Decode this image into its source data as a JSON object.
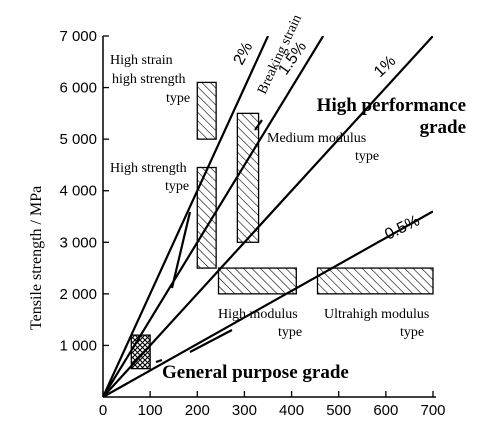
{
  "chart_data": {
    "type": "scatter",
    "title": "",
    "xlabel": "",
    "ylabel": "Tensile strength / MPa",
    "xlim": [
      0,
      700
    ],
    "ylim": [
      0,
      7000
    ],
    "x_ticks": [
      "0",
      "100",
      "200",
      "300",
      "400",
      "500",
      "600",
      "700"
    ],
    "y_ticks": [
      "1 000",
      "2 000",
      "3 000",
      "4 000",
      "5 000",
      "6 000",
      "7 000"
    ],
    "grid": false,
    "strain_lines": [
      {
        "label": "2%",
        "x": [
          0,
          350
        ],
        "y": [
          0,
          7000
        ]
      },
      {
        "label": "1.5%",
        "x": [
          0,
          467
        ],
        "y": [
          0,
          7000
        ]
      },
      {
        "label": "1%",
        "x": [
          0,
          700
        ],
        "y": [
          0,
          7000
        ]
      },
      {
        "label": "0.5%",
        "x": [
          0,
          700
        ],
        "y": [
          0,
          3600
        ]
      }
    ],
    "regions": [
      {
        "name": "High strain high strength type",
        "x": [
          200,
          240
        ],
        "y": [
          5000,
          6100
        ],
        "fill": "hatch"
      },
      {
        "name": "High strength type",
        "x": [
          200,
          240
        ],
        "y": [
          2500,
          4450
        ],
        "fill": "hatch"
      },
      {
        "name": "Medium modulus type",
        "x": [
          285,
          330
        ],
        "y": [
          3000,
          5500
        ],
        "fill": "hatch"
      },
      {
        "name": "High modulus type",
        "x": [
          245,
          410
        ],
        "y": [
          2000,
          2500
        ],
        "fill": "hatch"
      },
      {
        "name": "Ultrahigh modulus type",
        "x": [
          455,
          700
        ],
        "y": [
          2000,
          2500
        ],
        "fill": "hatch"
      },
      {
        "name": "General purpose grade",
        "x": [
          60,
          100
        ],
        "y": [
          550,
          1200
        ],
        "fill": "crosshatch"
      }
    ],
    "annotations": {
      "breaking_strain": "Breaking strain",
      "high_performance": [
        "High performance",
        "grade"
      ],
      "general_purpose": "General purpose grade",
      "high_strain": [
        "High strain",
        "high strength",
        "type"
      ],
      "high_strength": [
        "High strength",
        "type"
      ],
      "medium_modulus": [
        "Medium modulus",
        "type"
      ],
      "high_modulus": [
        "High modulus",
        "type"
      ],
      "ultrahigh_modulus": [
        "Ultrahigh modulus",
        "type"
      ]
    }
  }
}
